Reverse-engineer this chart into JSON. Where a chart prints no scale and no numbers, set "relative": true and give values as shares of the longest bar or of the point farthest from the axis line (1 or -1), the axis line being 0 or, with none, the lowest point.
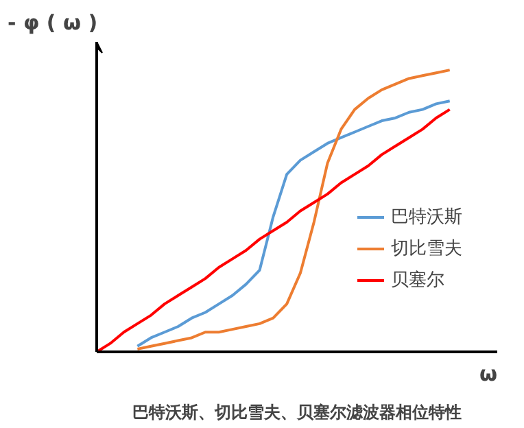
{
  "chart_data": {
    "type": "line",
    "relative": true,
    "title": "巴特沃斯、切比雪夫、贝塞尔滤波器相位特性",
    "ylabel": "- φ ( ω )",
    "xlabel": "ω",
    "legend": "right",
    "categories": [
      null,
      null,
      null,
      null,
      null,
      null,
      null,
      null,
      null,
      null,
      null,
      null,
      null,
      null,
      null,
      null,
      null,
      null,
      null,
      null,
      null,
      null,
      null,
      null,
      null,
      null,
      null
    ],
    "series": [
      {
        "name": "巴特沃斯",
        "color": "#5b9bd5",
        "values": [
          null,
          null,
          null,
          0.02,
          0.05,
          0.07,
          0.09,
          0.12,
          0.14,
          0.17,
          0.2,
          0.24,
          0.29,
          0.48,
          0.63,
          0.68,
          0.71,
          0.74,
          0.76,
          0.78,
          0.8,
          0.82,
          0.83,
          0.85,
          0.86,
          0.88,
          0.89
        ]
      },
      {
        "name": "切比雪夫",
        "color": "#ed7d31",
        "values": [
          null,
          null,
          null,
          0.01,
          0.02,
          0.03,
          0.04,
          0.05,
          0.07,
          0.07,
          0.08,
          0.09,
          0.1,
          0.12,
          0.17,
          0.28,
          0.46,
          0.67,
          0.79,
          0.86,
          0.9,
          0.93,
          0.95,
          0.97,
          0.98,
          0.99,
          1.0
        ]
      },
      {
        "name": "贝塞尔",
        "color": "#ff0000",
        "values": [
          0,
          0.03,
          0.07,
          0.1,
          0.13,
          0.17,
          0.2,
          0.23,
          0.26,
          0.3,
          0.33,
          0.36,
          0.4,
          0.43,
          0.46,
          0.5,
          0.53,
          0.56,
          0.6,
          0.63,
          0.66,
          0.7,
          0.73,
          0.76,
          0.79,
          0.83,
          0.86
        ]
      }
    ]
  }
}
